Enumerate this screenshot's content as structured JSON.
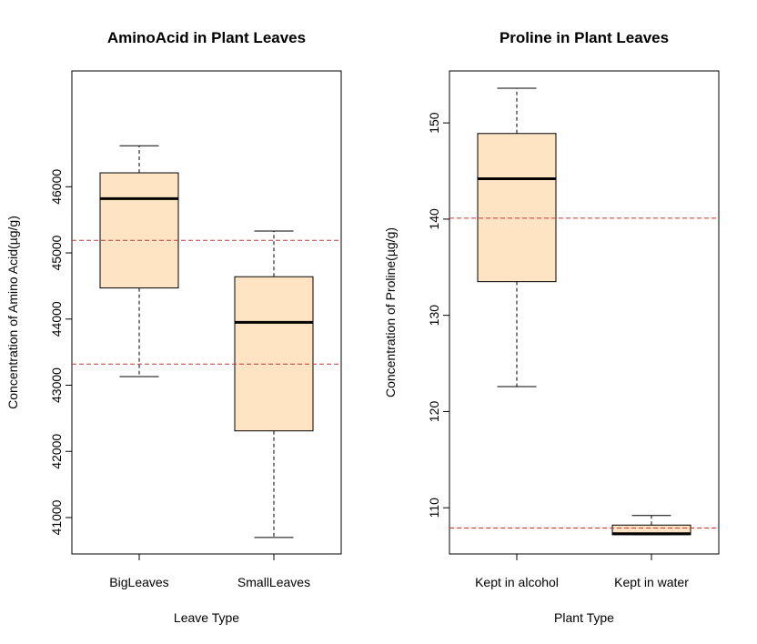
{
  "chart_data": [
    {
      "type": "boxplot",
      "title": "AminoAcid in Plant Leaves",
      "xlabel": "Leave Type",
      "ylabel": "Concentration of Amino Acid(µg/g)",
      "ylim": [
        40450,
        47750
      ],
      "yticks": [
        41000,
        42000,
        43000,
        44000,
        45000,
        46000
      ],
      "categories": [
        "BigLeaves",
        "SmallLeaves"
      ],
      "boxes": [
        {
          "category": "BigLeaves",
          "min": 43130,
          "q1": 44470,
          "median": 45820,
          "q3": 46210,
          "max": 46620
        },
        {
          "category": "SmallLeaves",
          "min": 40700,
          "q1": 42310,
          "median": 43950,
          "q3": 44640,
          "max": 45330
        }
      ],
      "reference_lines": [
        45190,
        43320
      ],
      "box_fill": "#FFE4C4",
      "ref_line_color": "#CC3333"
    },
    {
      "type": "boxplot",
      "title": "Proline in Plant Leaves",
      "xlabel": "Plant Type",
      "ylabel": "Concentration of Proline(µg/g)",
      "ylim": [
        105.2,
        155.4
      ],
      "yticks": [
        110,
        120,
        130,
        140,
        150
      ],
      "categories": [
        "Kept in alcohol",
        "Kept in water"
      ],
      "boxes": [
        {
          "category": "Kept in alcohol",
          "min": 122.6,
          "q1": 133.5,
          "median": 144.2,
          "q3": 148.9,
          "max": 153.6
        },
        {
          "category": "Kept in water",
          "min": 107.2,
          "q1": 107.2,
          "median": 107.3,
          "q3": 108.2,
          "max": 109.2
        }
      ],
      "reference_lines": [
        140.1,
        107.9
      ],
      "box_fill": "#FFE4C4",
      "ref_line_color": "#CC3333"
    }
  ]
}
